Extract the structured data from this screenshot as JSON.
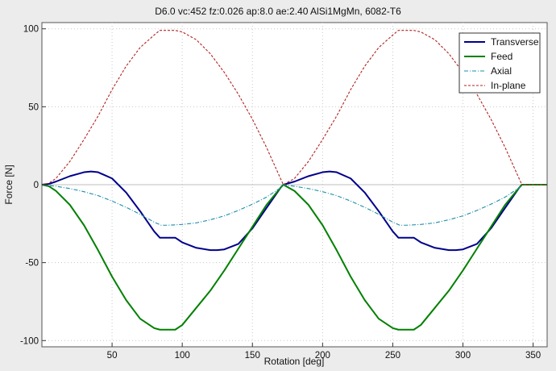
{
  "chart_data": {
    "type": "line",
    "title": "D6.0 vc:452 fz:0.026 ap:8.0 ae:2.40 AlSi1MgMn, 6082-T6",
    "xlabel": "Rotation [deg]",
    "ylabel": "Force [N]",
    "xlim": [
      0,
      360
    ],
    "ylim": [
      -104,
      104
    ],
    "x_ticks": [
      50,
      100,
      150,
      200,
      250,
      300,
      350
    ],
    "y_ticks": [
      -100,
      -50,
      0,
      50,
      100
    ],
    "grid": true,
    "legend_position": "top-right",
    "series": [
      {
        "name": "Transverse",
        "color": "#00008b",
        "style": "solid",
        "x": [
          0,
          5,
          10,
          20,
          30,
          35,
          40,
          50,
          60,
          70,
          80,
          84,
          90,
          95,
          100,
          110,
          120,
          125,
          130,
          140,
          150,
          160,
          170,
          172,
          180,
          190,
          200,
          205,
          210,
          220,
          230,
          240,
          250,
          254,
          260,
          265,
          270,
          280,
          290,
          295,
          300,
          310,
          320,
          330,
          340,
          342,
          350,
          360
        ],
        "y": [
          0,
          0.5,
          2,
          5.5,
          8,
          8.5,
          8,
          4,
          -5,
          -17,
          -30,
          -34,
          -34,
          -34,
          -37,
          -40.5,
          -42,
          -42,
          -41.5,
          -38,
          -28,
          -15,
          -2,
          0,
          2,
          5.5,
          8,
          8.5,
          8,
          4,
          -5,
          -17,
          -30,
          -34,
          -34,
          -34,
          -37,
          -40.5,
          -42,
          -42,
          -41.5,
          -38,
          -28,
          -15,
          -2,
          0,
          0,
          0
        ]
      },
      {
        "name": "Feed",
        "color": "#008000",
        "style": "solid",
        "x": [
          0,
          5,
          10,
          20,
          30,
          40,
          50,
          60,
          70,
          80,
          84,
          90,
          95,
          100,
          110,
          120,
          130,
          140,
          150,
          160,
          170,
          172,
          180,
          190,
          200,
          210,
          220,
          230,
          240,
          250,
          254,
          260,
          265,
          270,
          280,
          290,
          300,
          310,
          320,
          330,
          340,
          342,
          350,
          360
        ],
        "y": [
          0,
          -1,
          -4,
          -13,
          -26,
          -42,
          -59,
          -74,
          -86,
          -92,
          -93,
          -93,
          -93,
          -90,
          -79,
          -68,
          -55,
          -41,
          -27,
          -13,
          -2,
          0,
          -4,
          -13,
          -26,
          -42,
          -59,
          -74,
          -86,
          -92,
          -93,
          -93,
          -93,
          -90,
          -79,
          -68,
          -55,
          -41,
          -27,
          -13,
          -2,
          0,
          0,
          0
        ]
      },
      {
        "name": "Axial",
        "color": "#1a8fa8",
        "style": "dashdot",
        "x": [
          0,
          5,
          10,
          20,
          30,
          40,
          50,
          60,
          70,
          80,
          85,
          90,
          100,
          110,
          120,
          130,
          140,
          150,
          160,
          170,
          172,
          180,
          190,
          200,
          210,
          220,
          230,
          240,
          250,
          255,
          260,
          270,
          280,
          290,
          300,
          310,
          320,
          330,
          340,
          342,
          350,
          360
        ],
        "y": [
          0,
          -0.5,
          -1,
          -2.5,
          -4.5,
          -7,
          -10.5,
          -14.5,
          -19,
          -24,
          -26,
          -26,
          -25.5,
          -24.5,
          -22.5,
          -20,
          -16.5,
          -12.5,
          -8,
          -2,
          0,
          -1,
          -2.5,
          -4.5,
          -7,
          -10.5,
          -14.5,
          -19,
          -24,
          -26,
          -26,
          -25.5,
          -24.5,
          -22.5,
          -20,
          -16.5,
          -12.5,
          -8,
          -2,
          0,
          0,
          0
        ]
      },
      {
        "name": "In-plane",
        "color": "#b22222",
        "style": "dashed",
        "x": [
          0,
          5,
          10,
          20,
          30,
          40,
          50,
          60,
          70,
          80,
          84,
          90,
          95,
          100,
          110,
          120,
          130,
          140,
          150,
          160,
          170,
          172,
          180,
          190,
          200,
          210,
          220,
          230,
          240,
          250,
          254,
          260,
          265,
          270,
          280,
          290,
          300,
          310,
          320,
          330,
          340,
          342,
          350,
          360
        ],
        "y": [
          0,
          1,
          4,
          15,
          29,
          44,
          61,
          76,
          88,
          96,
          99,
          99,
          99,
          98,
          93,
          84,
          72,
          58,
          42,
          24,
          4,
          0,
          4,
          15,
          29,
          44,
          61,
          76,
          88,
          96,
          99,
          99,
          99,
          98,
          93,
          84,
          72,
          58,
          42,
          24,
          4,
          0,
          0,
          0
        ]
      }
    ]
  }
}
